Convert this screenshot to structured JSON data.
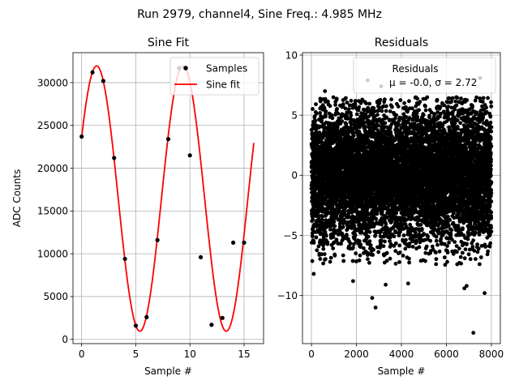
{
  "suptitle": "Run 2979, channel4, Sine Freq.: 4.985 MHz",
  "chart_data": [
    {
      "type": "line",
      "title": "Sine Fit",
      "xlabel": "Sample #",
      "ylabel": "ADC Counts",
      "xlim": [
        -0.8,
        16.8
      ],
      "ylim": [
        -500,
        33500
      ],
      "xticks": [
        0,
        5,
        10,
        15
      ],
      "yticks": [
        0,
        5000,
        10000,
        15000,
        20000,
        25000,
        30000
      ],
      "grid": true,
      "legend_position": "top-right",
      "series": [
        {
          "name": "Samples",
          "kind": "scatter",
          "color": "#000000",
          "x": [
            0,
            1,
            2,
            3,
            4,
            5,
            6,
            7,
            8,
            9,
            10,
            11,
            12,
            13,
            14,
            15
          ],
          "y": [
            23700,
            31200,
            30200,
            21200,
            9400,
            1600,
            2600,
            11600,
            23400,
            31700,
            21500,
            9600,
            1700,
            2500,
            11300,
            11300
          ]
        },
        {
          "name": "Sine fit",
          "kind": "line",
          "color": "#ff0000",
          "model": {
            "offset": 16450,
            "amplitude": 15500,
            "period": 7.98,
            "phase_at_x0": 0.48
          },
          "x_range": [
            0,
            15.9
          ]
        }
      ]
    },
    {
      "type": "scatter",
      "title": "Residuals",
      "xlabel": "Sample #",
      "xlim": [
        -400,
        8400
      ],
      "ylim": [
        -14,
        10.2
      ],
      "xticks": [
        0,
        2000,
        4000,
        6000,
        8000
      ],
      "yticks": [
        -10,
        -5,
        0,
        5,
        10
      ],
      "grid": true,
      "legend_position": "top-right",
      "legend_title": "Residuals",
      "legend_stats": "μ = -0.0, σ = 2.72",
      "color": "#000000",
      "n_points": 8000,
      "x_range": [
        0,
        8000
      ],
      "mean": 0.0,
      "std": 2.72,
      "outliers": [
        {
          "x": 7200,
          "y": -13.1
        },
        {
          "x": 2850,
          "y": -11.0
        },
        {
          "x": 2700,
          "y": -10.2
        },
        {
          "x": 2500,
          "y": 7.9
        },
        {
          "x": 7500,
          "y": 8.1
        },
        {
          "x": 1850,
          "y": -8.8
        },
        {
          "x": 6800,
          "y": -9.4
        },
        {
          "x": 6900,
          "y": -9.2
        },
        {
          "x": 4300,
          "y": -9.0
        },
        {
          "x": 3300,
          "y": -9.1
        },
        {
          "x": 600,
          "y": 7.0
        },
        {
          "x": 100,
          "y": -8.2
        },
        {
          "x": 7700,
          "y": -9.8
        },
        {
          "x": 3100,
          "y": 7.4
        }
      ]
    }
  ]
}
